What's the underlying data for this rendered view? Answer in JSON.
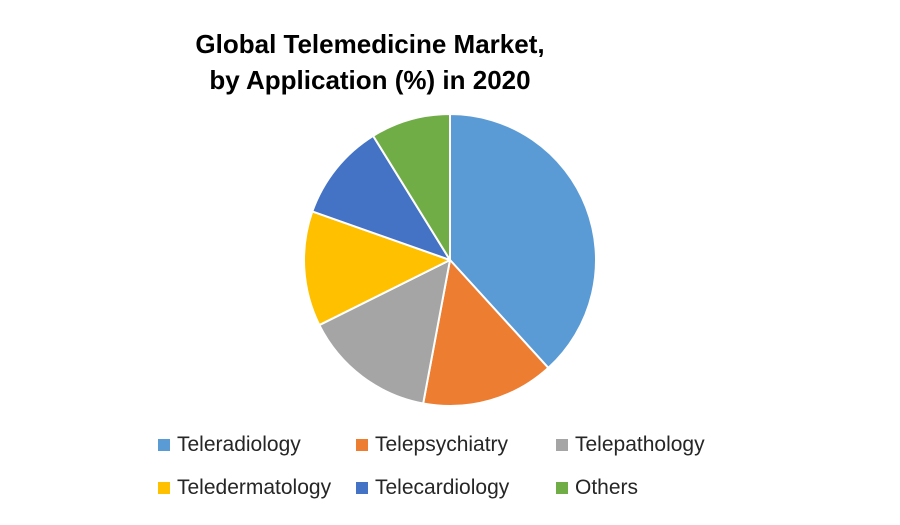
{
  "chart_data": {
    "type": "pie",
    "title_lines": [
      "Global Telemedicine Market,",
      "by Application (%) in 2020"
    ],
    "slices": [
      {
        "name": "Teleradiology",
        "value": 39,
        "color": "#5B9BD5"
      },
      {
        "name": "Telepsychiatry",
        "value": 15,
        "color": "#ED7D31"
      },
      {
        "name": "Telepathology",
        "value": 15,
        "color": "#A5A5A5"
      },
      {
        "name": "Teledermatology",
        "value": 13,
        "color": "#FFC000"
      },
      {
        "name": "Telecardiology",
        "value": 11,
        "color": "#4472C4"
      },
      {
        "name": "Others",
        "value": 9,
        "color": "#70AD47"
      }
    ],
    "start_angle": "12 o'clock",
    "direction": "clockwise",
    "legend_position": "bottom",
    "slice_border_color": "#FFFFFF"
  }
}
